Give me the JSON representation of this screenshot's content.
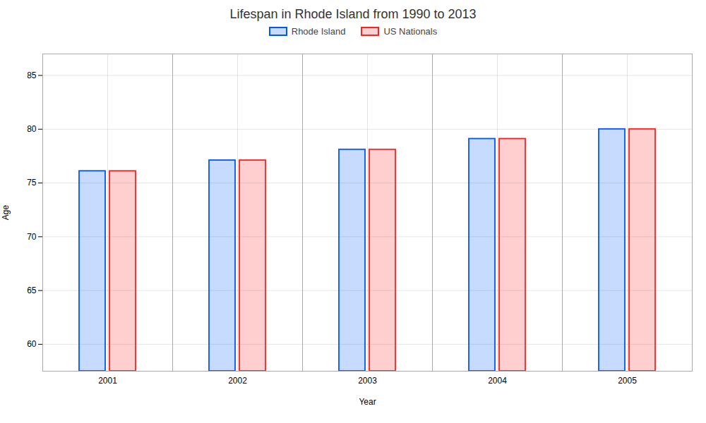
{
  "chart_data": {
    "type": "bar",
    "title": "Lifespan in Rhode Island from 1990 to 2013",
    "xlabel": "Year",
    "ylabel": "Age",
    "categories": [
      "2001",
      "2002",
      "2003",
      "2004",
      "2005"
    ],
    "series": [
      {
        "name": "Rhode Island",
        "color": "#0055ff",
        "values": [
          76.1,
          77.1,
          78.1,
          79.1,
          80.0
        ]
      },
      {
        "name": "US Nationals",
        "color": "#ff2020",
        "values": [
          76.1,
          77.1,
          78.1,
          79.1,
          80.0
        ]
      }
    ],
    "ylim": [
      57.5,
      87
    ],
    "yticks": [
      60,
      65,
      70,
      75,
      80,
      85
    ],
    "grid": true,
    "legend": "top"
  }
}
